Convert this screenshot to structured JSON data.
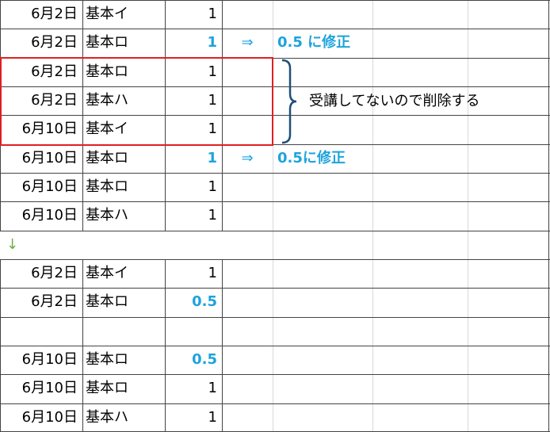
{
  "rows": [
    {
      "date": "6月2日",
      "item": "基本イ",
      "qty": 1
    },
    {
      "date": "6月2日",
      "item": "基本ロ",
      "qty": 1,
      "highlight": true,
      "arrow": "⇒",
      "fix": "0.5 に修正"
    },
    {
      "date": "6月2日",
      "item": "基本ロ",
      "qty": 1
    },
    {
      "date": "6月2日",
      "item": "基本ハ",
      "qty": 1
    },
    {
      "date": "6月10日",
      "item": "基本イ",
      "qty": 1
    },
    {
      "date": "6月10日",
      "item": "基本ロ",
      "qty": 1,
      "highlight": true,
      "arrow": "⇒",
      "fix": "0.5に修正"
    },
    {
      "date": "6月10日",
      "item": "基本ロ",
      "qty": 1
    },
    {
      "date": "6月10日",
      "item": "基本ハ",
      "qty": 1
    },
    {
      "marker": "↓"
    },
    {
      "date": "6月2日",
      "item": "基本イ",
      "qty": 1
    },
    {
      "date": "6月2日",
      "item": "基本ロ",
      "qty": 0.5,
      "highlight": true
    },
    {
      "blank": true
    },
    {
      "date": "6月10日",
      "item": "基本ロ",
      "qty": 0.5,
      "highlight": true
    },
    {
      "date": "6月10日",
      "item": "基本ロ",
      "qty": 1
    },
    {
      "date": "6月10日",
      "item": "基本ハ",
      "qty": 1
    }
  ],
  "bracket_note": "受講してないので削除する"
}
